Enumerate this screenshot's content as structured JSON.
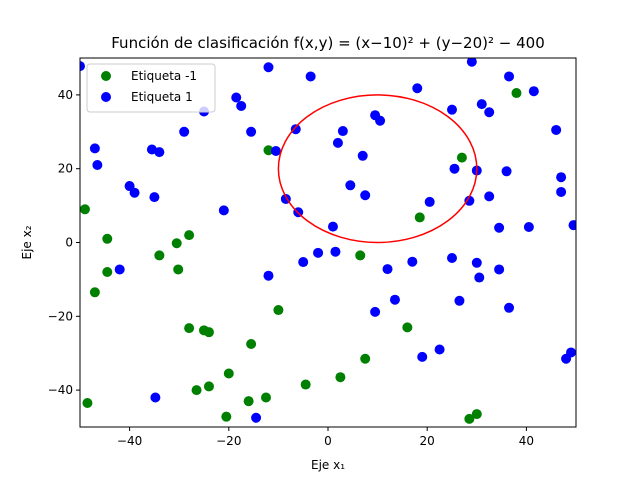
{
  "chart_data": {
    "type": "scatter",
    "title": "Función de clasificación f(x,y) = (x−10)² + (y−20)² − 400",
    "xlabel": "Eje x₁",
    "ylabel": "Eje x₂",
    "xlim": [
      -50,
      50
    ],
    "ylim": [
      -50,
      50
    ],
    "xticks": [
      -40,
      -20,
      0,
      20,
      40
    ],
    "yticks": [
      -40,
      -20,
      0,
      20,
      40
    ],
    "grid": false,
    "legend": "top-left",
    "boundary": {
      "shape": "circle",
      "center": [
        10,
        20
      ],
      "radius": 20,
      "color": "#ff0000"
    },
    "series": [
      {
        "name": "Etiqueta -1",
        "color": "#008000",
        "points": [
          [
            -49,
            9
          ],
          [
            -44.5,
            1
          ],
          [
            -44.5,
            -8
          ],
          [
            -47,
            -13.5
          ],
          [
            -34,
            -3.5
          ],
          [
            -30.5,
            -0.2
          ],
          [
            -28,
            2
          ],
          [
            -30.2,
            -7.3
          ],
          [
            -28,
            -23.2
          ],
          [
            -25,
            -23.8
          ],
          [
            -24,
            -24.3
          ],
          [
            -15.5,
            -27.5
          ],
          [
            -26.5,
            -40
          ],
          [
            -24,
            -39
          ],
          [
            -20,
            -35.5
          ],
          [
            -16,
            -43
          ],
          [
            -12.5,
            -42
          ],
          [
            -20.5,
            -47.2
          ],
          [
            -48.5,
            -43.5
          ],
          [
            -12,
            25
          ],
          [
            -10,
            -18.3
          ],
          [
            -4.5,
            -38.5
          ],
          [
            2.5,
            -36.5
          ],
          [
            7.5,
            -31.5
          ],
          [
            6.5,
            -3.5
          ],
          [
            16,
            -23
          ],
          [
            18.5,
            6.8
          ],
          [
            27,
            23
          ],
          [
            28.5,
            -47.8
          ],
          [
            30,
            -46.5
          ],
          [
            38,
            40.5
          ]
        ]
      },
      {
        "name": "Etiqueta 1",
        "color": "#0000ff",
        "points": [
          [
            -50,
            47.8
          ],
          [
            -12,
            47.5
          ],
          [
            -47,
            25.5
          ],
          [
            -46.5,
            21
          ],
          [
            -35.5,
            25.2
          ],
          [
            -34,
            24.5
          ],
          [
            -29,
            30
          ],
          [
            -25,
            35.5
          ],
          [
            -18.5,
            39.3
          ],
          [
            -17.5,
            37
          ],
          [
            -15.5,
            30
          ],
          [
            -10.5,
            24.8
          ],
          [
            -40,
            15.3
          ],
          [
            -39,
            13.5
          ],
          [
            -35,
            12.3
          ],
          [
            -21,
            8.7
          ],
          [
            -42,
            -7.3
          ],
          [
            -12,
            -9
          ],
          [
            -3.5,
            45
          ],
          [
            -6.5,
            30.7
          ],
          [
            -8.5,
            11.8
          ],
          [
            -6,
            8.2
          ],
          [
            -5,
            -5.3
          ],
          [
            -2,
            -2.8
          ],
          [
            1,
            4.3
          ],
          [
            2,
            27
          ],
          [
            3,
            30.2
          ],
          [
            4.5,
            15.5
          ],
          [
            7,
            23.5
          ],
          [
            7.5,
            12.8
          ],
          [
            9.5,
            34.5
          ],
          [
            10.5,
            33
          ],
          [
            1.5,
            -2.5
          ],
          [
            12,
            -7.2
          ],
          [
            13.5,
            -15.5
          ],
          [
            17,
            -5.2
          ],
          [
            19,
            -31
          ],
          [
            9.5,
            -18.8
          ],
          [
            20.5,
            11
          ],
          [
            18,
            41.8
          ],
          [
            22.5,
            -29
          ],
          [
            25,
            36
          ],
          [
            25.5,
            20
          ],
          [
            25,
            -4.2
          ],
          [
            26.5,
            -15.8
          ],
          [
            28.5,
            11.3
          ],
          [
            29,
            49
          ],
          [
            30,
            19.5
          ],
          [
            30,
            -5.5
          ],
          [
            30.5,
            -9.5
          ],
          [
            31,
            37.5
          ],
          [
            32.5,
            35.3
          ],
          [
            32.5,
            12.5
          ],
          [
            34.5,
            4
          ],
          [
            34.5,
            -7.3
          ],
          [
            36,
            19.3
          ],
          [
            36.5,
            45
          ],
          [
            36.5,
            -17.7
          ],
          [
            40.5,
            4.2
          ],
          [
            41.5,
            41
          ],
          [
            46,
            30.5
          ],
          [
            47,
            17.7
          ],
          [
            47,
            13.7
          ],
          [
            48,
            -31.5
          ],
          [
            49,
            -29.8
          ],
          [
            49.5,
            4.7
          ],
          [
            -34.8,
            -42
          ],
          [
            -14.5,
            -47.5
          ]
        ]
      }
    ]
  }
}
